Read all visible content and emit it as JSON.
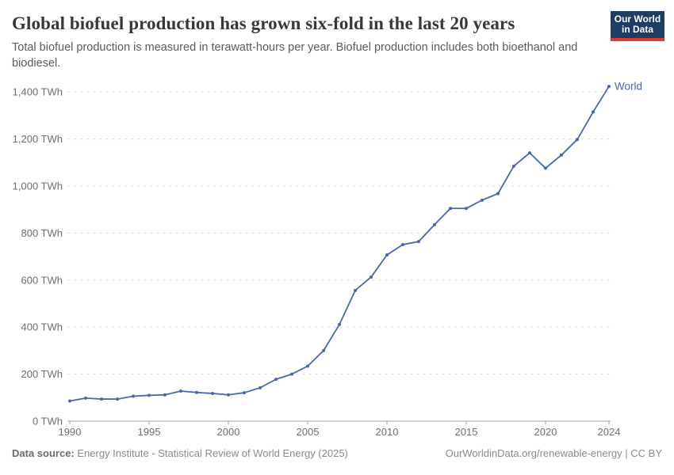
{
  "header": {
    "title": "Global biofuel production has grown six-fold in the last 20 years",
    "subtitle": "Total biofuel production is measured in terawatt-hours per year. Biofuel production includes both bioethanol and biodiesel.",
    "logo": {
      "line1": "Our World",
      "line2": "in Data",
      "bg_color": "#1d3d63",
      "accent_color": "#e0392f"
    }
  },
  "chart_data": {
    "type": "line",
    "title": "Global biofuel production has grown six-fold in the last 20 years",
    "subtitle": "Total biofuel production is measured in terawatt-hours per year. Biofuel production includes both bioethanol and biodiesel.",
    "unit": "TWh",
    "xlim": [
      1990,
      2024
    ],
    "ylim": [
      0,
      1400
    ],
    "grid": "horizontal-dashed",
    "legend_position": "end-of-line-label",
    "series": [
      {
        "name": "World",
        "color": "#4868a9",
        "years": [
          1990,
          1991,
          1992,
          1993,
          1994,
          1995,
          1996,
          1997,
          1998,
          1999,
          2000,
          2001,
          2002,
          2003,
          2004,
          2005,
          2006,
          2007,
          2008,
          2009,
          2010,
          2011,
          2012,
          2013,
          2014,
          2015,
          2016,
          2017,
          2018,
          2019,
          2020,
          2021,
          2022,
          2023,
          2024
        ],
        "values": [
          86,
          98,
          94,
          94,
          106,
          110,
          112,
          128,
          122,
          118,
          112,
          121,
          142,
          178,
          200,
          234,
          300,
          411,
          556,
          613,
          707,
          751,
          764,
          836,
          905,
          905,
          940,
          968,
          1085,
          1141,
          1076,
          1132,
          1198,
          1315,
          1424
        ]
      }
    ],
    "x_axis": {
      "ticks": [
        {
          "value": 1990,
          "label": "1990"
        },
        {
          "value": 1995,
          "label": "1995"
        },
        {
          "value": 2000,
          "label": "2000"
        },
        {
          "value": 2005,
          "label": "2005"
        },
        {
          "value": 2010,
          "label": "2010"
        },
        {
          "value": 2015,
          "label": "2015"
        },
        {
          "value": 2020,
          "label": "2020"
        },
        {
          "value": 2024,
          "label": "2024"
        }
      ]
    },
    "y_axis": {
      "unit": "TWh",
      "ticks": [
        {
          "value": 0,
          "label": "0 TWh"
        },
        {
          "value": 200,
          "label": "200 TWh"
        },
        {
          "value": 400,
          "label": "400 TWh"
        },
        {
          "value": 600,
          "label": "600 TWh"
        },
        {
          "value": 800,
          "label": "800 TWh"
        },
        {
          "value": 1000,
          "label": "1,000 TWh"
        },
        {
          "value": 1200,
          "label": "1,200 TWh"
        },
        {
          "value": 1400,
          "label": "1,400 TWh"
        }
      ]
    },
    "end_label": "World",
    "colors": {
      "gridline": "#dedede",
      "axis": "#a5a5a5",
      "tick_label": "#6e6e6e"
    }
  },
  "footer": {
    "source_label": "Data source:",
    "source_text": " Energy Institute - Statistical Review of World Energy (2025)",
    "credit_url": "OurWorldinData.org/renewable-energy",
    "credit_license": " | CC BY"
  }
}
